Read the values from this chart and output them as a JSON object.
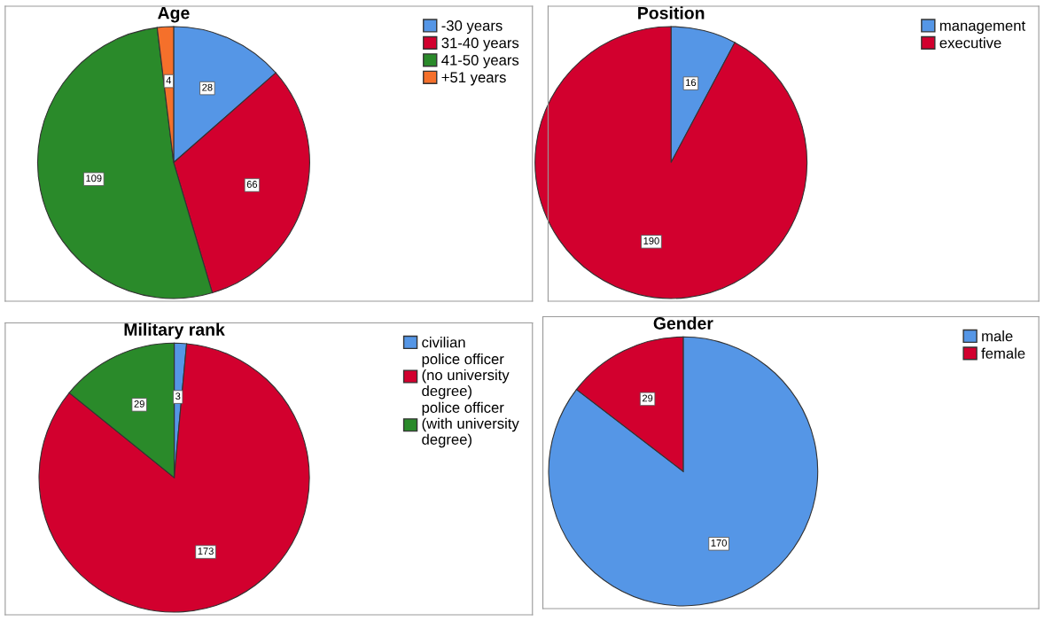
{
  "chart_data": [
    {
      "type": "pie",
      "title": "Age",
      "categories": [
        "-30 years",
        "31-40 years",
        "41-50 years",
        "+51 years"
      ],
      "values": [
        28,
        66,
        109,
        4
      ],
      "colors": [
        "#5596e6",
        "#d2002e",
        "#2a8a2a",
        "#f5702b"
      ],
      "data_labels": true,
      "legend": "top right"
    },
    {
      "type": "pie",
      "title": "Position",
      "categories": [
        "management",
        "executive"
      ],
      "values": [
        16,
        190
      ],
      "colors": [
        "#5596e6",
        "#d2002e"
      ],
      "data_labels": true,
      "legend": "top right"
    },
    {
      "type": "pie",
      "title": "Military rank",
      "categories": [
        "civilian",
        "police officer (no university degree)",
        "police officer (with university degree)"
      ],
      "values": [
        3,
        173,
        29
      ],
      "colors": [
        "#5596e6",
        "#d2002e",
        "#2a8a2a"
      ],
      "data_labels": true,
      "legend": "top right"
    },
    {
      "type": "pie",
      "title": "Gender",
      "categories": [
        "male",
        "female"
      ],
      "values": [
        170,
        29
      ],
      "colors": [
        "#5596e6",
        "#d2002e"
      ],
      "data_labels": true,
      "legend": "top right"
    }
  ]
}
